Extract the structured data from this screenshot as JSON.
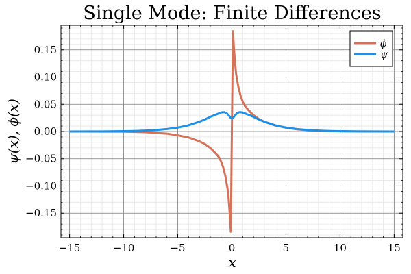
{
  "chart_data": {
    "type": "line",
    "title": "Single Mode: Finite Differences",
    "xlabel": "x",
    "ylabel": "ψ(x), ϕ(x)",
    "xlim": [
      -15.8,
      15.8
    ],
    "ylim": [
      -0.195,
      0.195
    ],
    "xticks": [
      -15,
      -10,
      -5,
      0,
      5,
      10,
      15
    ],
    "xtick_labels": [
      "−15",
      "−10",
      "−5",
      "0",
      "5",
      "10",
      "15"
    ],
    "yticks": [
      -0.15,
      -0.1,
      -0.05,
      0.0,
      0.05,
      0.1,
      0.15
    ],
    "ytick_labels": [
      "−0.15",
      "−0.10",
      "−0.05",
      "0.00",
      "0.05",
      "0.10",
      "0.15"
    ],
    "grid": true,
    "minor_grid": true,
    "legend_position": "top-right",
    "series": [
      {
        "name": "ϕ",
        "color": "#D5735A",
        "x": [
          -15,
          -12,
          -10,
          -8,
          -6,
          -5,
          -4,
          -3,
          -2.5,
          -2,
          -1.5,
          -1.2,
          -1,
          -0.8,
          -0.6,
          -0.4,
          -0.3,
          -0.2,
          -0.1,
          0.1,
          0.2,
          0.3,
          0.4,
          0.6,
          0.8,
          1,
          1.2,
          1.5,
          2,
          2.5,
          3,
          4,
          5,
          6,
          8,
          10,
          12,
          15
        ],
        "y": [
          0,
          -0.0001,
          -0.0003,
          -0.0012,
          -0.004,
          -0.007,
          -0.011,
          -0.018,
          -0.023,
          -0.03,
          -0.04,
          -0.047,
          -0.055,
          -0.066,
          -0.082,
          -0.105,
          -0.124,
          -0.15,
          -0.184,
          0.184,
          0.15,
          0.124,
          0.105,
          0.082,
          0.066,
          0.055,
          0.047,
          0.04,
          0.03,
          0.023,
          0.018,
          0.011,
          0.007,
          0.004,
          0.0012,
          0.0003,
          0.0001,
          0
        ]
      },
      {
        "name": "ψ",
        "color": "#1E90E8",
        "x": [
          -15,
          -12,
          -10,
          -9,
          -8,
          -7,
          -6,
          -5,
          -4,
          -3,
          -2.5,
          -2,
          -1.5,
          -1,
          -0.7,
          -0.5,
          -0.3,
          -0.15,
          0,
          0.15,
          0.3,
          0.5,
          0.7,
          1,
          1.5,
          2,
          2.5,
          3,
          4,
          5,
          6,
          7,
          8,
          9,
          10,
          12,
          15
        ],
        "y": [
          0,
          0.0002,
          0.0006,
          0.001,
          0.0017,
          0.0028,
          0.0045,
          0.0072,
          0.0115,
          0.018,
          0.022,
          0.027,
          0.031,
          0.035,
          0.0355,
          0.034,
          0.03,
          0.026,
          0.024,
          0.026,
          0.03,
          0.034,
          0.0355,
          0.035,
          0.031,
          0.027,
          0.022,
          0.018,
          0.0115,
          0.0072,
          0.0045,
          0.0028,
          0.0017,
          0.001,
          0.0006,
          0.0002,
          0
        ]
      }
    ]
  },
  "colors": {
    "phi": "#D5735A",
    "psi": "#1E90E8",
    "grid_major": "#7a7a7a",
    "grid_minor": "#e6e6e6"
  }
}
